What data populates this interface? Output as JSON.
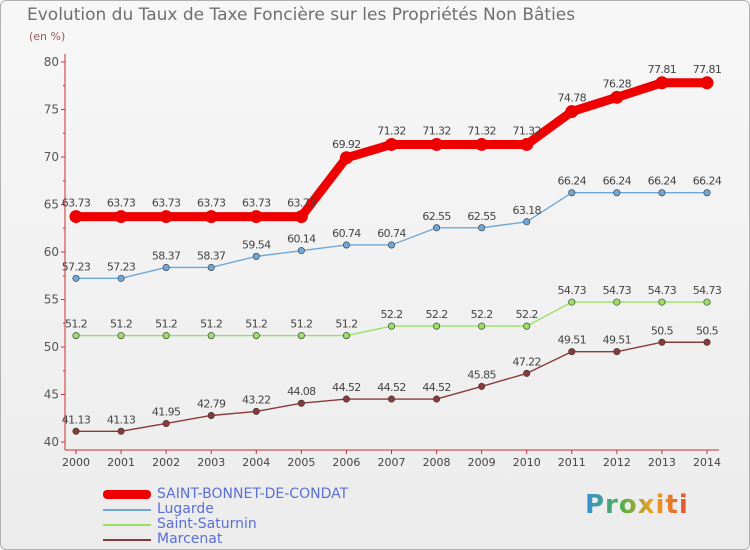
{
  "title": "Evolution du Taux de Taxe Foncière sur les Propriétés Non Bâties",
  "subtitle": "(en %)",
  "logo_text": "Proxiti",
  "chart_data": {
    "type": "line",
    "title": "Evolution du Taux de Taxe Foncière sur les Propriétés Non Bâties",
    "ylabel": "(en %)",
    "xlabel": "",
    "ylim": [
      40,
      80
    ],
    "yticks": [
      40,
      45,
      50,
      55,
      60,
      65,
      70,
      75,
      80
    ],
    "grid": false,
    "legend_position": "bottom-left",
    "categories": [
      "2000",
      "2001",
      "2002",
      "2003",
      "2004",
      "2005",
      "2006",
      "2007",
      "2008",
      "2009",
      "2010",
      "2011",
      "2012",
      "2013",
      "2014"
    ],
    "series": [
      {
        "name": "SAINT-BONNET-DE-CONDAT",
        "color": "#ee0000",
        "highlight": true,
        "values": [
          63.73,
          63.73,
          63.73,
          63.73,
          63.73,
          63.73,
          69.92,
          71.32,
          71.32,
          71.32,
          71.32,
          74.78,
          76.28,
          77.81,
          77.81
        ],
        "labels": [
          "63.73",
          "63.73",
          "63.73",
          "63.73",
          "63.73",
          "63.73",
          "69.92",
          "71.32",
          "71.32",
          "71.32",
          "71.32",
          "74.78",
          "76.28",
          "77.81",
          "77.81"
        ]
      },
      {
        "name": "Lugarde",
        "color": "#6fa8d8",
        "highlight": false,
        "values": [
          57.23,
          57.23,
          58.37,
          58.37,
          59.54,
          60.14,
          60.74,
          60.74,
          62.55,
          62.55,
          63.18,
          66.24,
          66.24,
          66.24,
          66.24
        ],
        "labels": [
          "57.23",
          "57.23",
          "58.37",
          "58.37",
          "59.54",
          "60.14",
          "60.74",
          "60.74",
          "62.55",
          "62.55",
          "63.18",
          "66.24",
          "66.24",
          "66.24",
          "66.24"
        ]
      },
      {
        "name": "Saint-Saturnin",
        "color": "#99e066",
        "highlight": false,
        "values": [
          51.2,
          51.2,
          51.2,
          51.2,
          51.2,
          51.2,
          51.2,
          52.2,
          52.2,
          52.2,
          52.2,
          54.73,
          54.73,
          54.73,
          54.73
        ],
        "labels": [
          "51.2",
          "51.2",
          "51.2",
          "51.2",
          "51.2",
          "51.2",
          "51.2",
          "52.2",
          "52.2",
          "52.2",
          "52.2",
          "54.73",
          "54.73",
          "54.73",
          "54.73"
        ]
      },
      {
        "name": "Marcenat",
        "color": "#8b3a3a",
        "highlight": false,
        "values": [
          41.13,
          41.13,
          41.95,
          42.79,
          43.22,
          44.08,
          44.52,
          44.52,
          44.52,
          45.85,
          47.22,
          49.51,
          49.51,
          50.5,
          50.5
        ],
        "labels": [
          "41.13",
          "41.13",
          "41.95",
          "42.79",
          "43.22",
          "44.08",
          "44.52",
          "44.52",
          "44.52",
          "45.85",
          "47.22",
          "49.51",
          "49.51",
          "50.5",
          "50.5"
        ]
      }
    ]
  },
  "colors": {
    "highlight_series": "#ee0000",
    "axis": "#c83030",
    "value_label": "#444444",
    "legend_text": "#5b6fd6"
  }
}
